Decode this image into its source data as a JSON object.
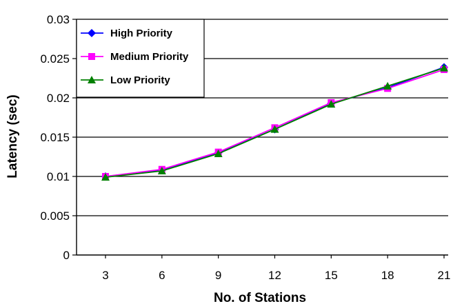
{
  "chart_data": {
    "type": "line",
    "xlabel": "No. of Stations",
    "ylabel": "Latency (sec)",
    "x": [
      3,
      6,
      9,
      12,
      15,
      18,
      21
    ],
    "x_tick_labels": [
      "3",
      "6",
      "9",
      "12",
      "15",
      "18",
      "21"
    ],
    "ylim": [
      0,
      0.03
    ],
    "y_tick_labels": [
      "0",
      "0.005",
      "0.01",
      "0.015",
      "0.02",
      "0.025",
      "0.03"
    ],
    "grid": "horizontal",
    "legend_position": "top-left",
    "series": [
      {
        "name": "High  Priority",
        "color": "#0000ff",
        "marker": "diamond",
        "values": [
          0.01,
          0.0108,
          0.013,
          0.016,
          0.0193,
          0.0213,
          0.0239
        ]
      },
      {
        "name": "Medium Priority",
        "color": "#ff00ff",
        "marker": "square",
        "values": [
          0.01,
          0.0109,
          0.0131,
          0.0162,
          0.0194,
          0.0212,
          0.0236
        ]
      },
      {
        "name": "Low Priority",
        "color": "#008000",
        "marker": "triangle",
        "values": [
          0.0099,
          0.0107,
          0.0129,
          0.016,
          0.0192,
          0.0215,
          0.0238
        ]
      }
    ]
  }
}
